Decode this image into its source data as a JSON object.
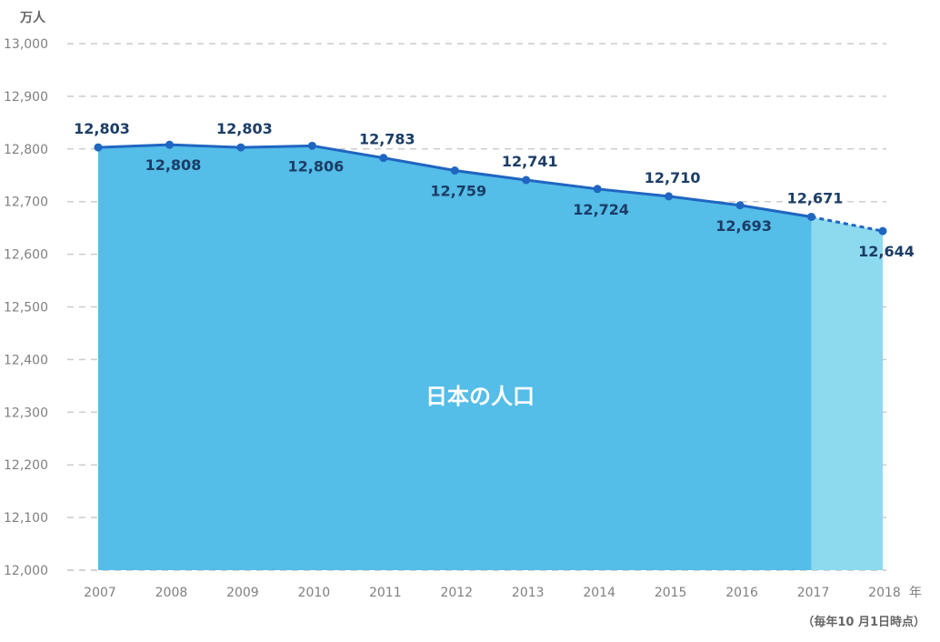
{
  "chart_data": {
    "type": "area",
    "y_unit": "万人",
    "x_unit": "年",
    "note": "（毎年10 月1日時点）",
    "area_label": "日本の人口",
    "x": [
      "2007",
      "2008",
      "2009",
      "2010",
      "2011",
      "2012",
      "2013",
      "2014",
      "2015",
      "2016",
      "2017",
      "2018"
    ],
    "series": [
      {
        "values": [
          12803,
          12808,
          12803,
          12806,
          12783,
          12759,
          12741,
          12724,
          12710,
          12693,
          12671,
          12644
        ],
        "labels": [
          "12,803",
          "12,808",
          "12,803",
          "12,806",
          "12,783",
          "12,759",
          "12,741",
          "12,724",
          "12,710",
          "12,693",
          "12,671",
          "12,644"
        ],
        "label_position": [
          "above",
          "below",
          "above",
          "below",
          "above",
          "below",
          "above",
          "below",
          "above",
          "below",
          "above",
          "below"
        ],
        "estimated_from_index": 10
      }
    ],
    "ylim": [
      12000,
      13000
    ],
    "yticks": [
      "12,000",
      "12,100",
      "12,200",
      "12,300",
      "12,400",
      "12,500",
      "12,600",
      "12,700",
      "12,800",
      "12,900",
      "13,000"
    ],
    "grid": true,
    "colors": {
      "area": "#54bde8",
      "area_estimated": "#8ddaef",
      "line": "#1f66c1",
      "grid": "#cccccc",
      "label": "#1b3d66"
    }
  }
}
